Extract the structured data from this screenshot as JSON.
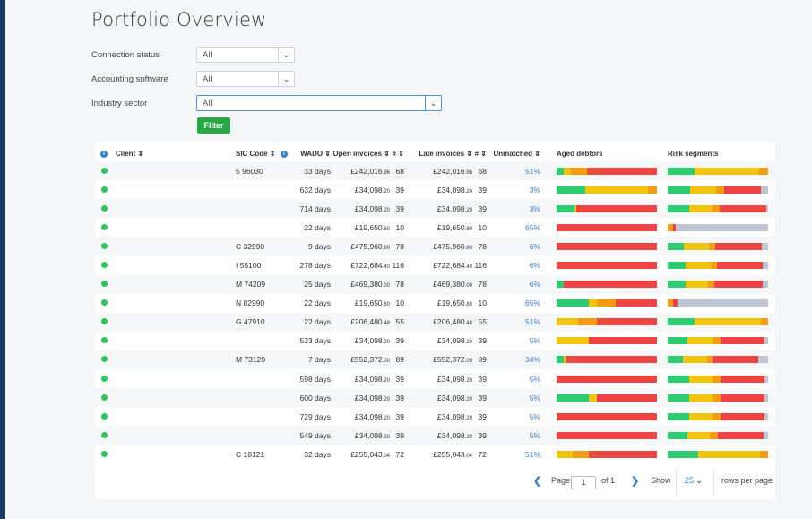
{
  "page_title": "Portfolio Overview",
  "filters": {
    "connection_status": {
      "label": "Connection status",
      "value": "All"
    },
    "accounting_software": {
      "label": "Accounting software",
      "value": "All"
    },
    "industry_sector": {
      "label": "Industry sector",
      "value": "All"
    },
    "filter_button": "Filter"
  },
  "table": {
    "headers": {
      "client": "Client ⇕",
      "sic": "SIC Code ⇕",
      "wado": "WADO ⇕",
      "open": "Open invoices ⇕",
      "num1": "# ⇕",
      "late": "Late invoices ⇕",
      "num2": "# ⇕",
      "unmatched": "Unmatched ⇕",
      "aged": "Aged debtors",
      "risk": "Risk segments"
    },
    "rows": [
      {
        "sic": "5 96030",
        "wado": "33 days",
        "open": "£242,016",
        "open_p": ".96",
        "n1": "68",
        "late": "£242,016",
        "late_p": ".96",
        "n2": "68",
        "unm": "51%",
        "aged": [
          [
            7,
            "#2ecc71"
          ],
          [
            7,
            "#f1c40f"
          ],
          [
            16,
            "#f39c12"
          ],
          [
            14,
            "#e74c3c"
          ],
          [
            56,
            "#ef4444"
          ]
        ],
        "risk": [
          [
            27,
            "#2ecc71"
          ],
          [
            64,
            "#f1c40f"
          ],
          [
            9,
            "#f39c12"
          ]
        ]
      },
      {
        "sic": "",
        "wado": "632 days",
        "open": "£34,098",
        "open_p": ".20",
        "n1": "39",
        "late": "£34,098",
        "late_p": ".20",
        "n2": "39",
        "unm": "3%",
        "aged": [
          [
            29,
            "#2ecc71"
          ],
          [
            62,
            "#f1c40f"
          ],
          [
            9,
            "#f39c12"
          ]
        ],
        "risk": [
          [
            22,
            "#2ecc71"
          ],
          [
            26,
            "#f1c40f"
          ],
          [
            8,
            "#f39c12"
          ],
          [
            37,
            "#ef4444"
          ],
          [
            7,
            "#bfc5d2"
          ]
        ]
      },
      {
        "sic": "",
        "wado": "714 days",
        "open": "£34,098",
        "open_p": ".20",
        "n1": "39",
        "late": "£34,098",
        "late_p": ".20",
        "n2": "39",
        "unm": "3%",
        "aged": [
          [
            18,
            "#2ecc71"
          ],
          [
            2,
            "#f1c40f"
          ],
          [
            80,
            "#ef4444"
          ]
        ],
        "risk": [
          [
            21,
            "#2ecc71"
          ],
          [
            23,
            "#f1c40f"
          ],
          [
            8,
            "#f39c12"
          ],
          [
            46,
            "#ef4444"
          ],
          [
            2,
            "#bfc5d2"
          ]
        ]
      },
      {
        "sic": "",
        "wado": "22 days",
        "open": "£19,650",
        "open_p": ".80",
        "n1": "10",
        "late": "£19,650",
        "late_p": ".80",
        "n2": "10",
        "unm": "65%",
        "aged": [
          [
            100,
            "#ef4444"
          ]
        ],
        "risk": [
          [
            5,
            "#f39c12"
          ],
          [
            3,
            "#ef4444"
          ],
          [
            92,
            "#bfc5d2"
          ]
        ]
      },
      {
        "sic": "C 32990",
        "wado": "9 days",
        "open": "£475,960",
        "open_p": ".80",
        "n1": "78",
        "late": "£475,960",
        "late_p": ".80",
        "n2": "78",
        "unm": "6%",
        "aged": [
          [
            100,
            "#ef4444"
          ]
        ],
        "risk": [
          [
            16,
            "#2ecc71"
          ],
          [
            25,
            "#f1c40f"
          ],
          [
            6,
            "#f39c12"
          ],
          [
            47,
            "#ef4444"
          ],
          [
            6,
            "#bfc5d2"
          ]
        ]
      },
      {
        "sic": "I 55100",
        "wado": "278 days",
        "open": "£722,684",
        "open_p": ".40",
        "n1": "116",
        "late": "£722,684",
        "late_p": ".40",
        "n2": "116",
        "unm": "6%",
        "aged": [
          [
            100,
            "#ef4444"
          ]
        ],
        "risk": [
          [
            18,
            "#2ecc71"
          ],
          [
            25,
            "#f1c40f"
          ],
          [
            6,
            "#f39c12"
          ],
          [
            46,
            "#ef4444"
          ],
          [
            5,
            "#bfc5d2"
          ]
        ]
      },
      {
        "sic": "M 74209",
        "wado": "25 days",
        "open": "£469,380",
        "open_p": ".00",
        "n1": "78",
        "late": "£469,380",
        "late_p": ".00",
        "n2": "78",
        "unm": "6%",
        "aged": [
          [
            7,
            "#2ecc71"
          ],
          [
            93,
            "#ef4444"
          ]
        ],
        "risk": [
          [
            18,
            "#2ecc71"
          ],
          [
            22,
            "#f1c40f"
          ],
          [
            6,
            "#f39c12"
          ],
          [
            49,
            "#ef4444"
          ],
          [
            5,
            "#bfc5d2"
          ]
        ]
      },
      {
        "sic": "N 82990",
        "wado": "22 days",
        "open": "£19,650",
        "open_p": ".80",
        "n1": "10",
        "late": "£19,650",
        "late_p": ".80",
        "n2": "10",
        "unm": "65%",
        "aged": [
          [
            32,
            "#2ecc71"
          ],
          [
            8,
            "#f1c40f"
          ],
          [
            19,
            "#f39c12"
          ],
          [
            41,
            "#ef4444"
          ]
        ],
        "risk": [
          [
            5,
            "#f39c12"
          ],
          [
            5,
            "#ef4444"
          ],
          [
            90,
            "#bfc5d2"
          ]
        ]
      },
      {
        "sic": "G 47910",
        "wado": "22 days",
        "open": "£206,480",
        "open_p": ".48",
        "n1": "55",
        "late": "£206,480",
        "late_p": ".48",
        "n2": "55",
        "unm": "51%",
        "aged": [
          [
            21,
            "#f1c40f"
          ],
          [
            19,
            "#f39c12"
          ],
          [
            10,
            "#e74c3c"
          ],
          [
            50,
            "#ef4444"
          ]
        ],
        "risk": [
          [
            27,
            "#2ecc71"
          ],
          [
            66,
            "#f1c40f"
          ],
          [
            7,
            "#f39c12"
          ]
        ]
      },
      {
        "sic": "",
        "wado": "533 days",
        "open": "£34,098",
        "open_p": ".20",
        "n1": "39",
        "late": "£34,098",
        "late_p": ".20",
        "n2": "39",
        "unm": "5%",
        "aged": [
          [
            32,
            "#f1c40f"
          ],
          [
            68,
            "#ef4444"
          ]
        ],
        "risk": [
          [
            20,
            "#2ecc71"
          ],
          [
            25,
            "#f1c40f"
          ],
          [
            8,
            "#f39c12"
          ],
          [
            43,
            "#ef4444"
          ],
          [
            4,
            "#bfc5d2"
          ]
        ]
      },
      {
        "sic": "M 73120",
        "wado": "7 days",
        "open": "£552,372",
        "open_p": ".00",
        "n1": "89",
        "late": "£552,372",
        "late_p": ".00",
        "n2": "89",
        "unm": "34%",
        "aged": [
          [
            7,
            "#2ecc71"
          ],
          [
            3,
            "#f1c40f"
          ],
          [
            10,
            "#e74c3c"
          ],
          [
            80,
            "#ef4444"
          ]
        ],
        "risk": [
          [
            15,
            "#2ecc71"
          ],
          [
            24,
            "#f1c40f"
          ],
          [
            6,
            "#f39c12"
          ],
          [
            45,
            "#ef4444"
          ],
          [
            10,
            "#bfc5d2"
          ]
        ]
      },
      {
        "sic": "",
        "wado": "598 days",
        "open": "£34,098",
        "open_p": ".20",
        "n1": "39",
        "late": "£34,098",
        "late_p": ".20",
        "n2": "39",
        "unm": "5%",
        "aged": [
          [
            100,
            "#ef4444"
          ]
        ],
        "risk": [
          [
            21,
            "#2ecc71"
          ],
          [
            24,
            "#f1c40f"
          ],
          [
            8,
            "#f39c12"
          ],
          [
            43,
            "#ef4444"
          ],
          [
            4,
            "#bfc5d2"
          ]
        ]
      },
      {
        "sic": "",
        "wado": "600 days",
        "open": "£34,098",
        "open_p": ".20",
        "n1": "39",
        "late": "£34,098",
        "late_p": ".20",
        "n2": "39",
        "unm": "5%",
        "aged": [
          [
            32,
            "#2ecc71"
          ],
          [
            8,
            "#f1c40f"
          ],
          [
            60,
            "#ef4444"
          ]
        ],
        "risk": [
          [
            21,
            "#2ecc71"
          ],
          [
            24,
            "#f1c40f"
          ],
          [
            8,
            "#f39c12"
          ],
          [
            43,
            "#ef4444"
          ],
          [
            4,
            "#bfc5d2"
          ]
        ]
      },
      {
        "sic": "",
        "wado": "729 days",
        "open": "£34,098",
        "open_p": ".20",
        "n1": "39",
        "late": "£34,098",
        "late_p": ".20",
        "n2": "39",
        "unm": "5%",
        "aged": [
          [
            100,
            "#ef4444"
          ]
        ],
        "risk": [
          [
            21,
            "#2ecc71"
          ],
          [
            24,
            "#f1c40f"
          ],
          [
            8,
            "#f39c12"
          ],
          [
            43,
            "#ef4444"
          ],
          [
            4,
            "#bfc5d2"
          ]
        ]
      },
      {
        "sic": "",
        "wado": "549 days",
        "open": "£34,098",
        "open_p": ".20",
        "n1": "39",
        "late": "£34,098",
        "late_p": ".20",
        "n2": "39",
        "unm": "5%",
        "aged": [
          [
            100,
            "#ef4444"
          ]
        ],
        "risk": [
          [
            20,
            "#2ecc71"
          ],
          [
            22,
            "#f1c40f"
          ],
          [
            8,
            "#f39c12"
          ],
          [
            46,
            "#ef4444"
          ],
          [
            4,
            "#bfc5d2"
          ]
        ]
      },
      {
        "sic": "C 18121",
        "wado": "32 days",
        "open": "£255,043",
        "open_p": ".04",
        "n1": "72",
        "late": "£255,043",
        "late_p": ".04",
        "n2": "72",
        "unm": "51%",
        "aged": [
          [
            16,
            "#f1c40f"
          ],
          [
            16,
            "#f39c12"
          ],
          [
            14,
            "#e74c3c"
          ],
          [
            54,
            "#ef4444"
          ]
        ],
        "risk": [
          [
            30,
            "#2ecc71"
          ],
          [
            62,
            "#f1c40f"
          ],
          [
            8,
            "#f39c12"
          ]
        ]
      }
    ]
  },
  "pagination": {
    "page_label": "Page",
    "page_value": "1",
    "of_label": "of 1",
    "show_label": "Show",
    "rows_value": "25",
    "rows_label": "rows per page"
  },
  "colors": {
    "accent": "#3b82c4",
    "filter_button": "#28a745",
    "status_ok": "#2ec55b"
  }
}
